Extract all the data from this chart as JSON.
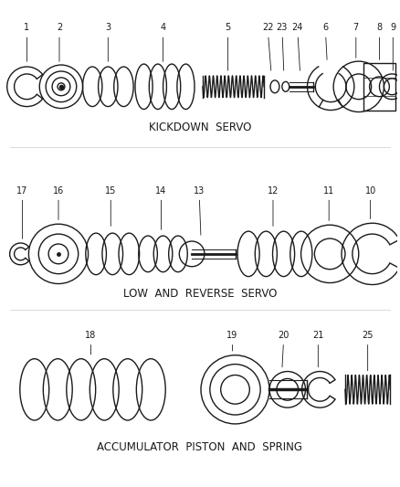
{
  "bg_color": "#ffffff",
  "line_color": "#1a1a1a",
  "section1_label": "KICKDOWN  SERVO",
  "section2_label": "LOW  AND  REVERSE  SERVO",
  "section3_label": "ACCUMULATOR  PISTON  AND  SPRING"
}
